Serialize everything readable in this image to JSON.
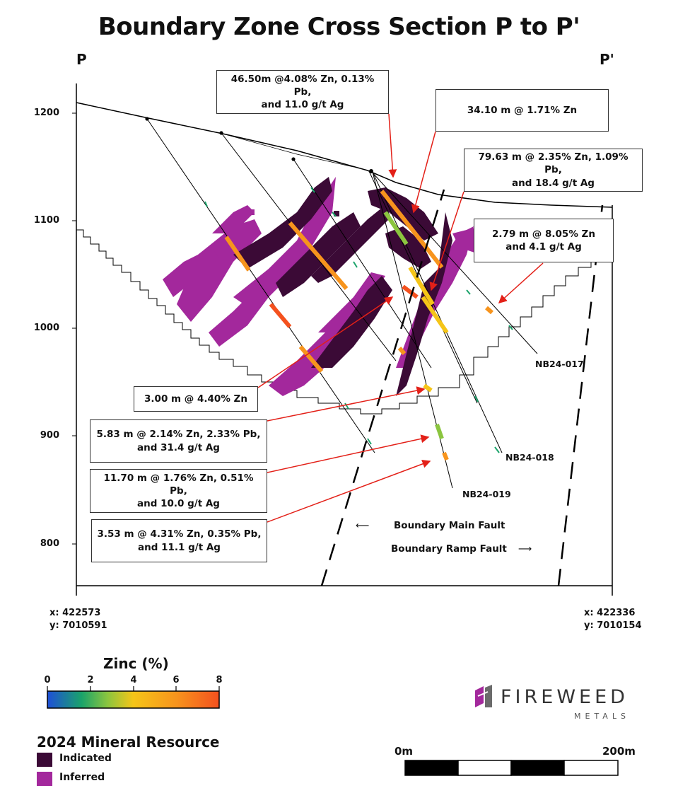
{
  "title": "Boundary Zone Cross Section P to P'",
  "section_start": "P",
  "section_end": "P'",
  "y_axis": {
    "ticks": [
      "1200",
      "1100",
      "1000",
      "900",
      "800"
    ]
  },
  "callouts": [
    {
      "id": "c1",
      "lines": [
        "46.50m @4.08% Zn, 0.13% Pb,",
        "and 11.0 g/t Ag"
      ]
    },
    {
      "id": "c2",
      "lines": [
        "34.10 m @ 1.71% Zn"
      ]
    },
    {
      "id": "c3",
      "lines": [
        "79.63 m @ 2.35% Zn, 1.09% Pb,",
        "and 18.4 g/t Ag"
      ]
    },
    {
      "id": "c4",
      "lines": [
        "2.79 m @ 8.05% Zn",
        "and 4.1 g/t Ag"
      ]
    },
    {
      "id": "c5",
      "lines": [
        "3.00 m @ 4.40% Zn"
      ]
    },
    {
      "id": "c6",
      "lines": [
        "5.83 m @ 2.14% Zn, 2.33% Pb,",
        "and 31.4 g/t Ag"
      ]
    },
    {
      "id": "c7",
      "lines": [
        "11.70 m @ 1.76% Zn, 0.51% Pb,",
        "and 10.0 g/t Ag"
      ]
    },
    {
      "id": "c8",
      "lines": [
        "3.53 m @ 4.31% Zn, 0.35% Pb,",
        "and 11.1 g/t Ag"
      ]
    }
  ],
  "drill_holes": [
    "NB24-017",
    "NB24-018",
    "NB24-019"
  ],
  "faults": {
    "main": "Boundary Main Fault",
    "ramp": "Boundary Ramp Fault",
    "main_arrow": "⟵",
    "ramp_arrow": "⟶"
  },
  "coords": {
    "left": {
      "x": "x: 422573",
      "y": "y: 7010591"
    },
    "right": {
      "x": "x: 422336",
      "y": "y: 7010154"
    }
  },
  "legend": {
    "zinc_title": "Zinc (%)",
    "zinc_ticks": [
      "0",
      "2",
      "4",
      "6",
      "8"
    ],
    "resource_title": "2024 Mineral Resource",
    "indicated": "Indicated",
    "inferred": "Inferred"
  },
  "brand": {
    "name": "FIREWEED",
    "sub": "METALS"
  },
  "scale_bar": {
    "start": "0m",
    "end": "200m"
  },
  "colors": {
    "indicated": "#3b0a36",
    "inferred": "#a3289c",
    "callout_arrow": "#e32018",
    "zinc_gradient": [
      "#1f4fd8",
      "#1aa36a",
      "#8bc53f",
      "#f5c518",
      "#f7941d",
      "#f4511e"
    ]
  }
}
